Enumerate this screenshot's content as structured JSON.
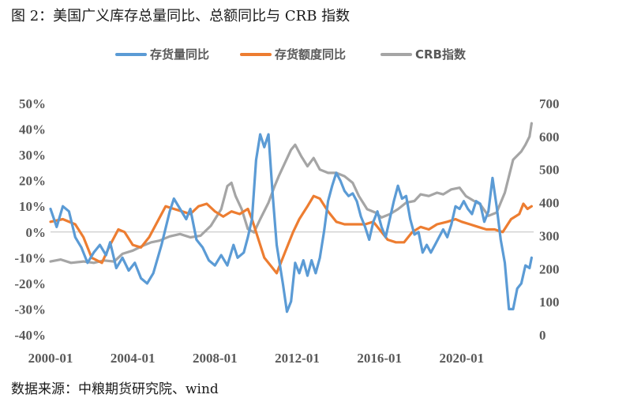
{
  "figure": {
    "title": "图 2：美国广义库存总量同比、总额同比与 CRB 指数",
    "source": "数据来源：中粮期货研究院、wind"
  },
  "chart_data": {
    "type": "line",
    "title": "",
    "xlabel": "",
    "ylabel": "",
    "y2label": "",
    "x_ticks": [
      "2000-01",
      "2004-01",
      "2008-01",
      "2012-01",
      "2016-01",
      "2020-01"
    ],
    "y_left_ticks": [
      "50%",
      "40%",
      "30%",
      "20%",
      "10%",
      "0%",
      "-10%",
      "-20%",
      "-30%",
      "-40%"
    ],
    "y_right_ticks": [
      "700",
      "600",
      "500",
      "400",
      "300",
      "200",
      "100",
      "0"
    ],
    "ylim_left": [
      -40,
      50
    ],
    "ylim_right": [
      0,
      700
    ],
    "xlim": [
      2000.0,
      2023.5
    ],
    "grid": false,
    "zero_line": true,
    "legend_position": "top",
    "series": [
      {
        "name": "存货量同比",
        "color": "#5B9BD5",
        "axis": "left",
        "points": [
          [
            2000.0,
            9
          ],
          [
            2000.3,
            2
          ],
          [
            2000.6,
            10
          ],
          [
            2000.9,
            8
          ],
          [
            2001.2,
            -2
          ],
          [
            2001.5,
            -6
          ],
          [
            2001.8,
            -12
          ],
          [
            2002.1,
            -8
          ],
          [
            2002.4,
            -5
          ],
          [
            2002.7,
            -9
          ],
          [
            2002.9,
            -4
          ],
          [
            2003.2,
            -14
          ],
          [
            2003.5,
            -10
          ],
          [
            2003.8,
            -15
          ],
          [
            2004.1,
            -12
          ],
          [
            2004.4,
            -18
          ],
          [
            2004.7,
            -20
          ],
          [
            2005.0,
            -16
          ],
          [
            2005.4,
            -5
          ],
          [
            2005.8,
            8
          ],
          [
            2006.0,
            13
          ],
          [
            2006.3,
            9
          ],
          [
            2006.6,
            5
          ],
          [
            2006.8,
            9
          ],
          [
            2007.1,
            -3
          ],
          [
            2007.4,
            -6
          ],
          [
            2007.7,
            -11
          ],
          [
            2008.0,
            -13
          ],
          [
            2008.3,
            -9
          ],
          [
            2008.6,
            -13
          ],
          [
            2008.9,
            -5
          ],
          [
            2009.1,
            -10
          ],
          [
            2009.4,
            -8
          ],
          [
            2009.6,
            -2
          ],
          [
            2009.8,
            5
          ],
          [
            2010.0,
            28
          ],
          [
            2010.2,
            38
          ],
          [
            2010.4,
            33
          ],
          [
            2010.6,
            38
          ],
          [
            2010.8,
            15
          ],
          [
            2011.0,
            -5
          ],
          [
            2011.3,
            -20
          ],
          [
            2011.5,
            -31
          ],
          [
            2011.7,
            -27
          ],
          [
            2011.9,
            -12
          ],
          [
            2012.1,
            -16
          ],
          [
            2012.3,
            -11
          ],
          [
            2012.5,
            -17
          ],
          [
            2012.7,
            -11
          ],
          [
            2012.9,
            -16
          ],
          [
            2013.1,
            -10
          ],
          [
            2013.3,
            0
          ],
          [
            2013.5,
            12
          ],
          [
            2013.7,
            18
          ],
          [
            2013.9,
            23
          ],
          [
            2014.1,
            20
          ],
          [
            2014.3,
            16
          ],
          [
            2014.5,
            14
          ],
          [
            2014.7,
            15
          ],
          [
            2014.9,
            12
          ],
          [
            2015.1,
            6
          ],
          [
            2015.3,
            2
          ],
          [
            2015.5,
            -3
          ],
          [
            2015.7,
            4
          ],
          [
            2015.9,
            8
          ],
          [
            2016.1,
            2
          ],
          [
            2016.3,
            -2
          ],
          [
            2016.5,
            5
          ],
          [
            2016.7,
            12
          ],
          [
            2016.9,
            18
          ],
          [
            2017.1,
            13
          ],
          [
            2017.3,
            14
          ],
          [
            2017.5,
            5
          ],
          [
            2017.7,
            -1
          ],
          [
            2017.9,
            0
          ],
          [
            2018.1,
            -8
          ],
          [
            2018.3,
            -5
          ],
          [
            2018.5,
            -8
          ],
          [
            2018.7,
            -5
          ],
          [
            2018.9,
            -2
          ],
          [
            2019.1,
            1
          ],
          [
            2019.3,
            -2
          ],
          [
            2019.5,
            3
          ],
          [
            2019.7,
            10
          ],
          [
            2019.9,
            9
          ],
          [
            2020.1,
            12
          ],
          [
            2020.3,
            9
          ],
          [
            2020.5,
            7
          ],
          [
            2020.7,
            12
          ],
          [
            2020.9,
            11
          ],
          [
            2021.1,
            4
          ],
          [
            2021.3,
            8
          ],
          [
            2021.5,
            21
          ],
          [
            2021.7,
            10
          ],
          [
            2021.9,
            -3
          ],
          [
            2022.1,
            -12
          ],
          [
            2022.3,
            -30
          ],
          [
            2022.5,
            -30
          ],
          [
            2022.7,
            -22
          ],
          [
            2022.9,
            -20
          ],
          [
            2023.1,
            -13
          ],
          [
            2023.3,
            -14
          ],
          [
            2023.4,
            -10
          ]
        ]
      },
      {
        "name": "存货额度同比",
        "color": "#ED7D31",
        "axis": "left",
        "points": [
          [
            2000.0,
            4
          ],
          [
            2000.6,
            5
          ],
          [
            2001.2,
            3
          ],
          [
            2001.6,
            -2
          ],
          [
            2002.0,
            -10
          ],
          [
            2002.5,
            -12
          ],
          [
            2002.9,
            -5
          ],
          [
            2003.3,
            1
          ],
          [
            2003.6,
            0
          ],
          [
            2004.0,
            -5
          ],
          [
            2004.4,
            -6
          ],
          [
            2004.8,
            -2
          ],
          [
            2005.2,
            4
          ],
          [
            2005.6,
            10
          ],
          [
            2006.0,
            9
          ],
          [
            2006.4,
            8
          ],
          [
            2006.8,
            7
          ],
          [
            2007.2,
            10
          ],
          [
            2007.6,
            11
          ],
          [
            2008.0,
            8
          ],
          [
            2008.4,
            6
          ],
          [
            2008.8,
            8
          ],
          [
            2009.2,
            7
          ],
          [
            2009.6,
            9
          ],
          [
            2009.8,
            5
          ],
          [
            2010.0,
            0
          ],
          [
            2010.4,
            -10
          ],
          [
            2010.8,
            -14
          ],
          [
            2011.0,
            -16
          ],
          [
            2011.4,
            -8
          ],
          [
            2011.8,
            0
          ],
          [
            2012.1,
            5
          ],
          [
            2012.5,
            10
          ],
          [
            2012.8,
            14
          ],
          [
            2013.1,
            13
          ],
          [
            2013.5,
            8
          ],
          [
            2013.9,
            4
          ],
          [
            2014.3,
            3
          ],
          [
            2014.8,
            3
          ],
          [
            2015.3,
            3
          ],
          [
            2015.7,
            4
          ],
          [
            2016.0,
            1
          ],
          [
            2016.4,
            -3
          ],
          [
            2016.8,
            -4
          ],
          [
            2017.2,
            -4
          ],
          [
            2017.6,
            0
          ],
          [
            2018.0,
            2
          ],
          [
            2018.4,
            1
          ],
          [
            2018.8,
            3
          ],
          [
            2019.3,
            4
          ],
          [
            2019.7,
            5
          ],
          [
            2020.0,
            4
          ],
          [
            2020.4,
            3
          ],
          [
            2020.8,
            2
          ],
          [
            2021.2,
            1
          ],
          [
            2021.6,
            1
          ],
          [
            2022.0,
            0
          ],
          [
            2022.4,
            5
          ],
          [
            2022.8,
            7
          ],
          [
            2023.0,
            11
          ],
          [
            2023.2,
            9
          ],
          [
            2023.4,
            10
          ]
        ]
      },
      {
        "name": "CRB指数",
        "color": "#A5A5A5",
        "axis": "right",
        "points": [
          [
            2000.0,
            222
          ],
          [
            2000.5,
            228
          ],
          [
            2001.0,
            218
          ],
          [
            2001.6,
            222
          ],
          [
            2002.1,
            218
          ],
          [
            2002.6,
            225
          ],
          [
            2003.1,
            222
          ],
          [
            2003.5,
            245
          ],
          [
            2004.0,
            255
          ],
          [
            2004.5,
            270
          ],
          [
            2004.9,
            280
          ],
          [
            2005.3,
            285
          ],
          [
            2005.8,
            298
          ],
          [
            2006.3,
            305
          ],
          [
            2006.8,
            295
          ],
          [
            2007.3,
            300
          ],
          [
            2007.8,
            330
          ],
          [
            2008.3,
            380
          ],
          [
            2008.6,
            450
          ],
          [
            2008.8,
            460
          ],
          [
            2009.0,
            420
          ],
          [
            2009.3,
            380
          ],
          [
            2009.6,
            320
          ],
          [
            2009.9,
            310
          ],
          [
            2010.2,
            350
          ],
          [
            2010.6,
            400
          ],
          [
            2010.9,
            450
          ],
          [
            2011.1,
            480
          ],
          [
            2011.4,
            520
          ],
          [
            2011.7,
            560
          ],
          [
            2011.9,
            575
          ],
          [
            2012.2,
            540
          ],
          [
            2012.5,
            510
          ],
          [
            2012.8,
            535
          ],
          [
            2013.1,
            500
          ],
          [
            2013.5,
            490
          ],
          [
            2013.9,
            490
          ],
          [
            2014.3,
            480
          ],
          [
            2014.7,
            460
          ],
          [
            2015.0,
            420
          ],
          [
            2015.4,
            380
          ],
          [
            2015.8,
            370
          ],
          [
            2016.1,
            355
          ],
          [
            2016.5,
            365
          ],
          [
            2016.9,
            380
          ],
          [
            2017.3,
            400
          ],
          [
            2017.7,
            405
          ],
          [
            2018.0,
            425
          ],
          [
            2018.4,
            420
          ],
          [
            2018.8,
            430
          ],
          [
            2019.1,
            425
          ],
          [
            2019.5,
            440
          ],
          [
            2019.9,
            445
          ],
          [
            2020.2,
            420
          ],
          [
            2020.6,
            405
          ],
          [
            2020.9,
            395
          ],
          [
            2021.3,
            360
          ],
          [
            2021.7,
            370
          ],
          [
            2022.1,
            430
          ],
          [
            2022.5,
            530
          ],
          [
            2022.9,
            555
          ],
          [
            2023.1,
            575
          ],
          [
            2023.3,
            600
          ],
          [
            2023.4,
            640
          ]
        ]
      }
    ]
  }
}
